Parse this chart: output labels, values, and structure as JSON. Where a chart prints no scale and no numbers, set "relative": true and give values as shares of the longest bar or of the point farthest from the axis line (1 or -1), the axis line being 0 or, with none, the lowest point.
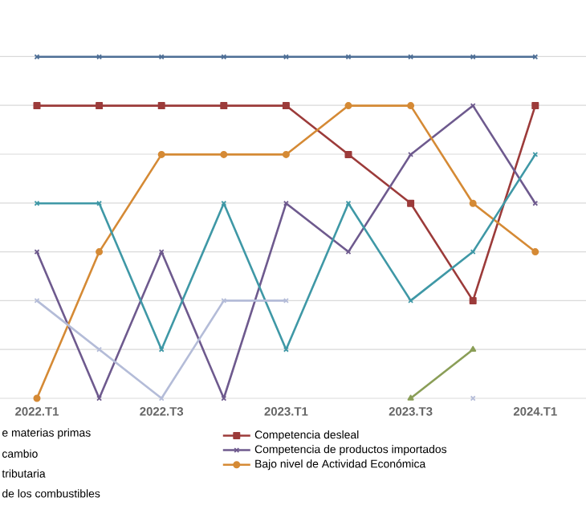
{
  "chart_data": {
    "type": "line",
    "relative": true,
    "categories": [
      "2022.T1",
      null,
      "2022.T3",
      null,
      "2023.T1",
      null,
      "2023.T3",
      null,
      "2024.T1"
    ],
    "grid": "y",
    "legend": "bottom",
    "line_style": "solid",
    "series": [
      {
        "color": "#4e6f96",
        "marker": "cross",
        "values": [
          1,
          1,
          1,
          1,
          1,
          1,
          1,
          1,
          1
        ]
      },
      {
        "name": "Competencia desleal",
        "color": "#9c3b3a",
        "marker": "square",
        "values": [
          0.857,
          0.857,
          0.857,
          0.857,
          0.857,
          0.714,
          0.571,
          0.286,
          0.857
        ]
      },
      {
        "name": "Competencia de productos importados",
        "color": "#6e5a8e",
        "marker": "cross",
        "values": [
          0.429,
          0,
          0.429,
          0,
          0.571,
          0.429,
          0.714,
          0.857,
          0.571
        ]
      },
      {
        "name": "Bajo nivel de Actividad Económica",
        "color": "#d58a35",
        "marker": "circle",
        "values": [
          0,
          0.429,
          0.714,
          0.714,
          0.714,
          0.857,
          0.857,
          0.571,
          0.429
        ]
      },
      {
        "color": "#3f98a6",
        "marker": "cross",
        "values": [
          0.571,
          0.571,
          0.143,
          0.571,
          0.143,
          0.571,
          0.286,
          0.429,
          0.714
        ]
      },
      {
        "color": "#b4bcd8",
        "marker": "cross",
        "values": [
          0.286,
          0.143,
          0,
          0.286,
          0.286,
          null,
          null,
          0,
          null
        ]
      },
      {
        "color": "#8a9e57",
        "marker": "triangle",
        "values": [
          null,
          null,
          null,
          null,
          null,
          null,
          0,
          0.143,
          null
        ]
      }
    ],
    "annotations": [
      "e materias primas",
      "cambio",
      "tributaria",
      "de los combustibles"
    ]
  }
}
